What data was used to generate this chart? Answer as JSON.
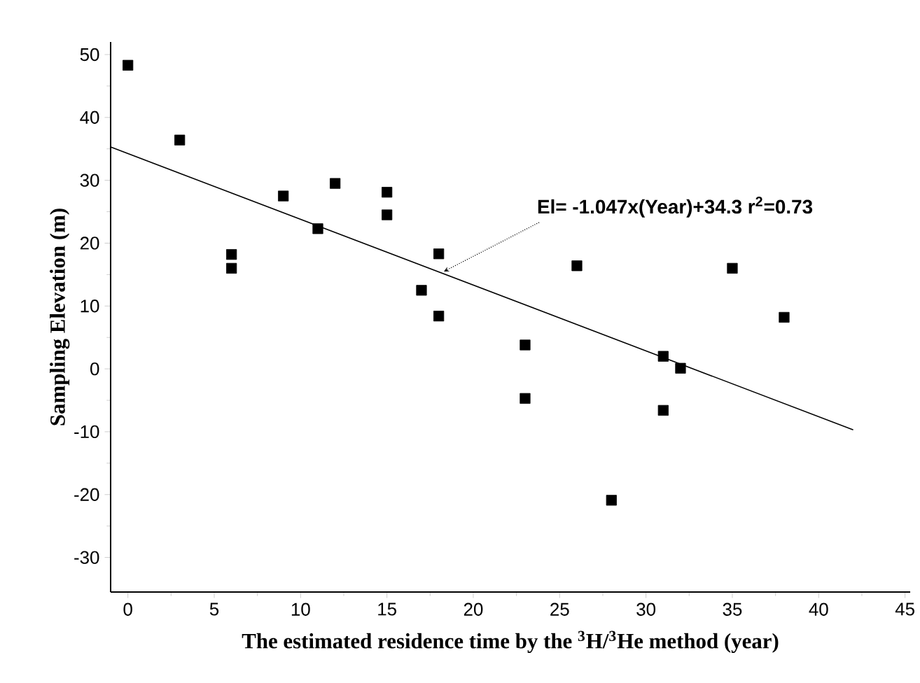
{
  "chart_data": {
    "type": "scatter",
    "xlabel": "The estimated residence time by the $^{3}$H/$^{3}$He method (year)",
    "ylabel": "Sampling Elevation (m)",
    "series": [
      {
        "color": "#000000",
        "marker": "square",
        "x": [
          0,
          3,
          6,
          6,
          9,
          11,
          12,
          15,
          15,
          17,
          18,
          18,
          23,
          23,
          26,
          28,
          31,
          31,
          32,
          35,
          38
        ],
        "values": [
          48.3,
          36.4,
          18.2,
          16.0,
          27.5,
          22.3,
          29.5,
          28.1,
          24.5,
          12.5,
          18.3,
          8.4,
          3.8,
          -4.7,
          16.4,
          -20.9,
          2.0,
          -6.6,
          0.1,
          16.0,
          8.2
        ]
      },
      {
        "type": "line",
        "color": "#000000",
        "marker": "none",
        "line_style": "solid",
        "x": [
          -1,
          42
        ],
        "values": [
          35.3,
          -9.7
        ]
      }
    ],
    "annotations": [
      {
        "text": "El= -1.047x(Year)+34.3  r$^{2}$=0.73",
        "x": 18.3,
        "y": 15.5
      }
    ],
    "xlim": [
      -1,
      45.3
    ],
    "ylim": [
      -35.5,
      52
    ],
    "xticks": [
      0,
      5,
      10,
      15,
      20,
      25,
      30,
      35,
      40,
      45
    ],
    "yticks": [
      -30,
      -20,
      -10,
      0,
      10,
      20,
      30,
      40,
      50
    ],
    "grid": false
  }
}
